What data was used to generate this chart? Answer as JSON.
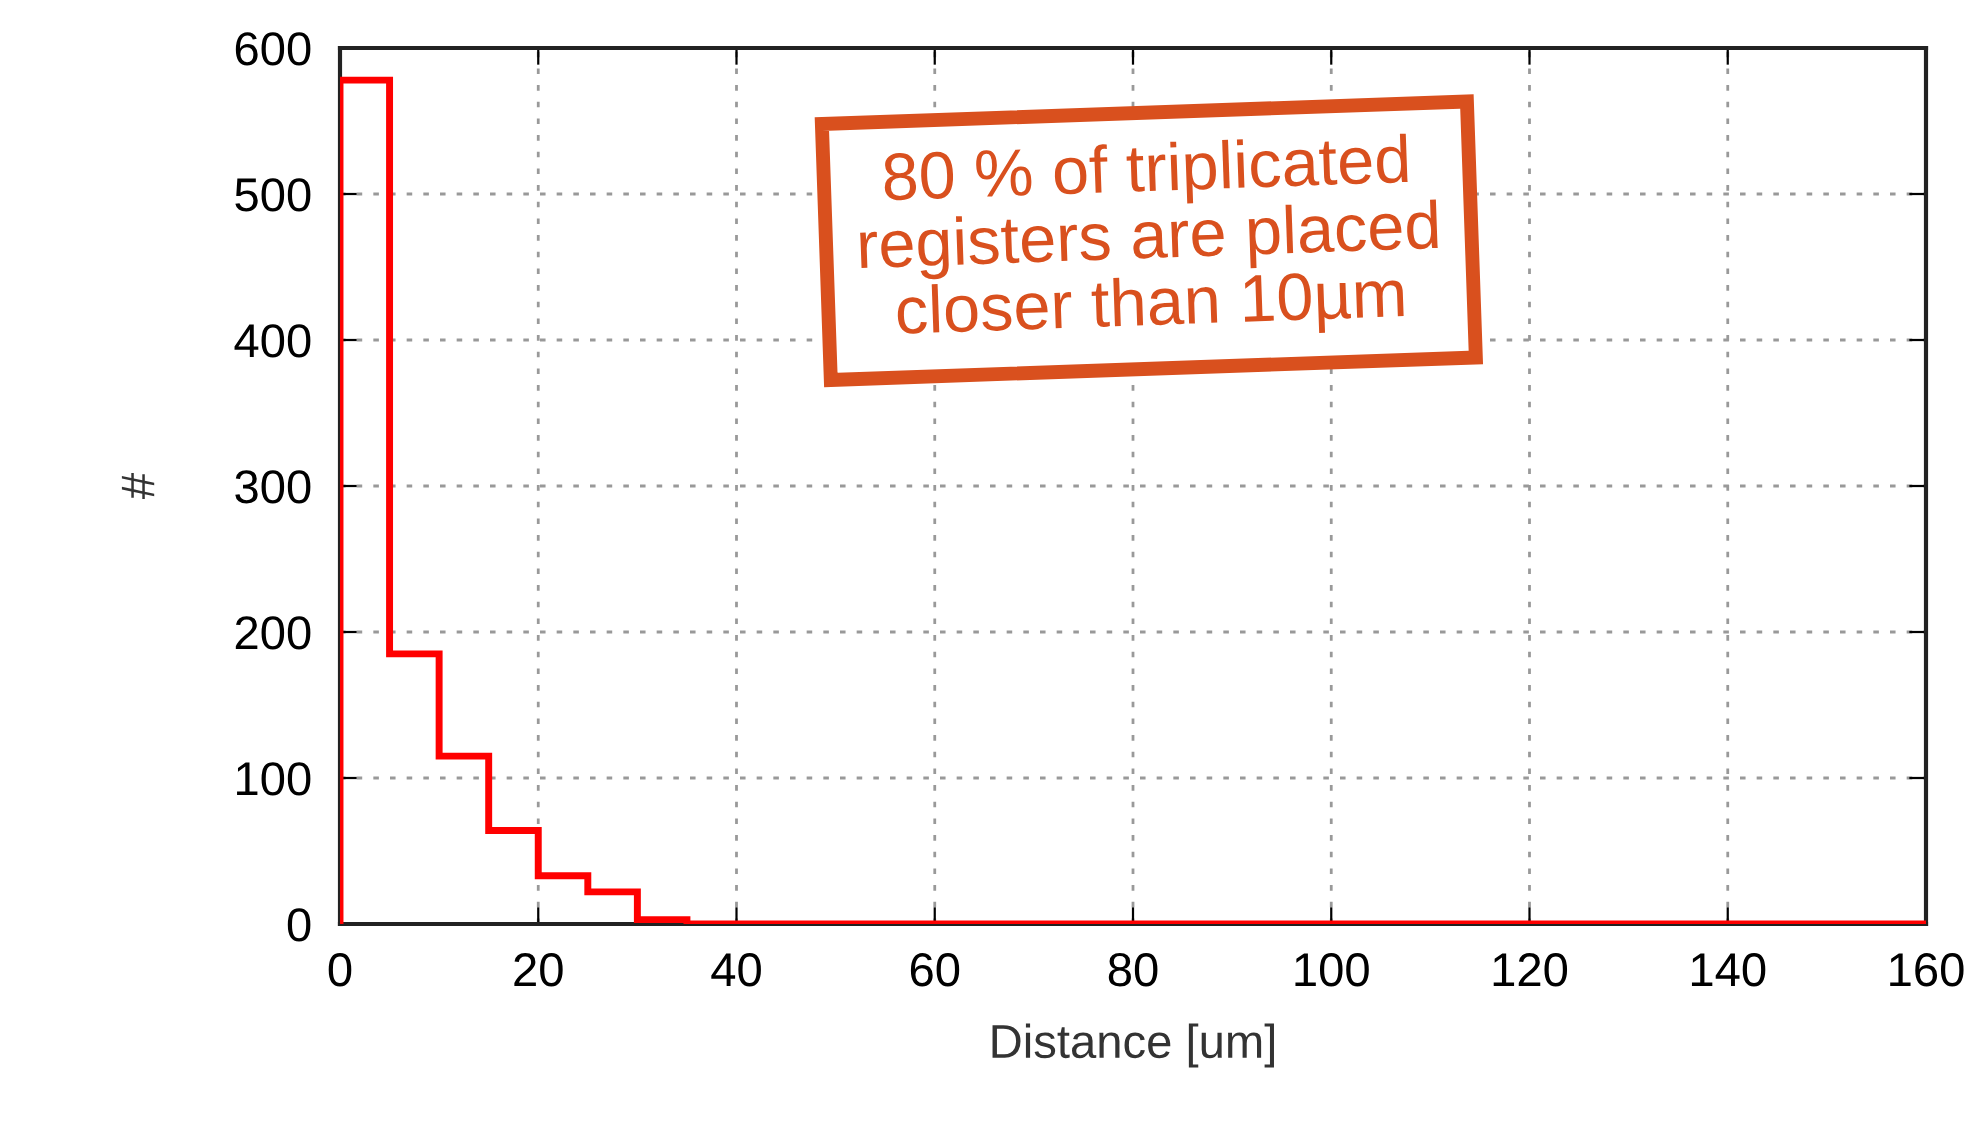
{
  "chart_data": {
    "type": "histogram",
    "xlabel": "Distance [um]",
    "ylabel": "#",
    "bins": [
      0,
      5,
      10,
      15,
      20,
      25,
      30,
      35,
      40,
      45,
      50,
      55,
      60,
      65,
      70,
      75,
      80,
      85,
      90,
      95,
      100,
      105,
      110,
      115,
      120,
      125,
      130,
      135,
      140,
      145,
      150,
      155,
      160
    ],
    "values": [
      578,
      185,
      115,
      64,
      33,
      22,
      3,
      0,
      0,
      0,
      0,
      0,
      0,
      0,
      0,
      0,
      0,
      0,
      0,
      0,
      0,
      0,
      0,
      0,
      0,
      0,
      0,
      0,
      0,
      0,
      0,
      0
    ],
    "color": "#ff0000",
    "xlim": [
      0,
      160
    ],
    "ylim": [
      0,
      600
    ],
    "xticks": [
      0,
      20,
      40,
      60,
      80,
      100,
      120,
      140,
      160
    ],
    "yticks": [
      0,
      100,
      200,
      300,
      400,
      500,
      600
    ],
    "grid": true,
    "annotations": [
      "80 % of triplicated\nregisters are placed\ncloser than 10µm"
    ]
  }
}
